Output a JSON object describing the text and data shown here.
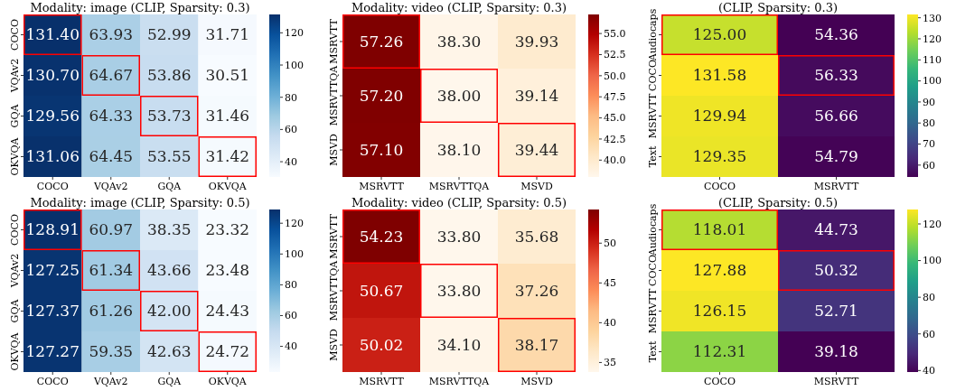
{
  "chart_data": [
    {
      "type": "heatmap",
      "title": "Modality: image (CLIP, Sparsity: 0.3)",
      "categories": [
        "COCO",
        "VQAv2",
        "GQA",
        "OKVQA"
      ],
      "y_categories": [
        "COCO",
        "VQAv2",
        "GQA",
        "OKVQA"
      ],
      "cells": [
        [
          131.4,
          63.93,
          52.99,
          31.71
        ],
        [
          130.7,
          64.67,
          53.86,
          30.51
        ],
        [
          129.56,
          64.33,
          53.73,
          31.46
        ],
        [
          131.06,
          64.45,
          53.55,
          31.42
        ]
      ],
      "cell_labels": [
        [
          "131.40",
          "63.93",
          "52.99",
          "31.71"
        ],
        [
          "130.70",
          "64.67",
          "53.86",
          "30.51"
        ],
        [
          "129.56",
          "64.33",
          "53.73",
          "31.46"
        ],
        [
          "131.06",
          "64.45",
          "53.55",
          "31.42"
        ]
      ],
      "clim": [
        30.51,
        131.4
      ],
      "cticks": [
        40,
        60,
        80,
        100,
        120
      ],
      "colors": [
        "#f7fbff",
        "#deebf7",
        "#c6dbef",
        "#9ecae1",
        "#6baed6",
        "#4292c6",
        "#2171b5",
        "#08519c",
        "#08306b"
      ]
    },
    {
      "type": "heatmap",
      "title": "Modality: video (CLIP, Sparsity: 0.3)",
      "categories": [
        "MSRVTT",
        "MSRVTTQA",
        "MSVD"
      ],
      "y_categories": [
        "MSRVTT",
        "MSRVTTQA",
        "MSVD"
      ],
      "cells": [
        [
          57.26,
          38.3,
          39.93
        ],
        [
          57.2,
          38.0,
          39.14
        ],
        [
          57.1,
          38.1,
          39.44
        ]
      ],
      "cell_labels": [
        [
          "57.26",
          "38.30",
          "39.93"
        ],
        [
          "57.20",
          "38.00",
          "39.14"
        ],
        [
          "57.10",
          "38.10",
          "39.44"
        ]
      ],
      "clim": [
        38.0,
        57.26
      ],
      "cticks": [
        {
          "value": 40,
          "label": "40.0"
        },
        {
          "value": 42.5,
          "label": "42.5"
        },
        {
          "value": 45,
          "label": "45.0"
        },
        {
          "value": 47.5,
          "label": "47.5"
        },
        {
          "value": 50,
          "label": "50.0"
        },
        {
          "value": 52.5,
          "label": "52.5"
        },
        {
          "value": 55,
          "label": "55.0"
        }
      ],
      "colors": [
        "#fff7ec",
        "#fee8c8",
        "#fdd49e",
        "#fdbb84",
        "#fc8d59",
        "#ef6548",
        "#d7301f",
        "#b30000",
        "#7f0000"
      ]
    },
    {
      "type": "heatmap",
      "title": "(CLIP, Sparsity: 0.3)",
      "categories": [
        "COCO",
        "MSRVTT"
      ],
      "y_categories": [
        "Audiocaps",
        "COCO",
        "MSRVTT",
        "Text"
      ],
      "cells": [
        [
          125.0,
          54.36
        ],
        [
          131.58,
          56.33
        ],
        [
          129.94,
          56.66
        ],
        [
          129.35,
          54.79
        ]
      ],
      "cell_labels": [
        [
          "125.00",
          "54.36"
        ],
        [
          "131.58",
          "56.33"
        ],
        [
          "129.94",
          "56.66"
        ],
        [
          "129.35",
          "54.79"
        ]
      ],
      "clim": [
        54.36,
        131.58
      ],
      "cticks": [
        60,
        70,
        80,
        90,
        100,
        110,
        120,
        130
      ],
      "colors": [
        "#440154",
        "#482878",
        "#3e4989",
        "#31688e",
        "#26828e",
        "#1f9e89",
        "#35b779",
        "#6ece58",
        "#b5de2b",
        "#fde725"
      ]
    },
    {
      "type": "heatmap",
      "title": "Modality: image (CLIP, Sparsity: 0.5)",
      "categories": [
        "COCO",
        "VQAv2",
        "GQA",
        "OKVQA"
      ],
      "y_categories": [
        "COCO",
        "VQAv2",
        "GQA",
        "OKVQA"
      ],
      "cells": [
        [
          128.91,
          60.97,
          38.35,
          23.32
        ],
        [
          127.25,
          61.34,
          43.66,
          23.48
        ],
        [
          127.37,
          61.26,
          42.0,
          24.43
        ],
        [
          127.27,
          59.35,
          42.63,
          24.72
        ]
      ],
      "cell_labels": [
        [
          "128.91",
          "60.97",
          "38.35",
          "23.32"
        ],
        [
          "127.25",
          "61.34",
          "43.66",
          "23.48"
        ],
        [
          "127.37",
          "61.26",
          "42.00",
          "24.43"
        ],
        [
          "127.27",
          "59.35",
          "42.63",
          "24.72"
        ]
      ],
      "clim": [
        23.32,
        128.91
      ],
      "cticks": [
        40,
        60,
        80,
        100,
        120
      ],
      "colors": [
        "#f7fbff",
        "#deebf7",
        "#c6dbef",
        "#9ecae1",
        "#6baed6",
        "#4292c6",
        "#2171b5",
        "#08519c",
        "#08306b"
      ]
    },
    {
      "type": "heatmap",
      "title": "Modality: video (CLIP, Sparsity: 0.5)",
      "categories": [
        "MSRVTT",
        "MSRVTTQA",
        "MSVD"
      ],
      "y_categories": [
        "MSRVTT",
        "MSRVTTQA",
        "MSVD"
      ],
      "cells": [
        [
          54.23,
          33.8,
          35.68
        ],
        [
          50.67,
          33.8,
          37.26
        ],
        [
          50.02,
          34.1,
          38.17
        ]
      ],
      "cell_labels": [
        [
          "54.23",
          "33.80",
          "35.68"
        ],
        [
          "50.67",
          "33.80",
          "37.26"
        ],
        [
          "50.02",
          "34.10",
          "38.17"
        ]
      ],
      "clim": [
        33.8,
        54.23
      ],
      "cticks": [
        35,
        40,
        45,
        50
      ],
      "colors": [
        "#fff7ec",
        "#fee8c8",
        "#fdd49e",
        "#fdbb84",
        "#fc8d59",
        "#ef6548",
        "#d7301f",
        "#b30000",
        "#7f0000"
      ]
    },
    {
      "type": "heatmap",
      "title": "(CLIP, Sparsity: 0.5)",
      "categories": [
        "COCO",
        "MSRVTT"
      ],
      "y_categories": [
        "Audiocaps",
        "COCO",
        "MSRVTT",
        "Text"
      ],
      "cells": [
        [
          118.01,
          44.73
        ],
        [
          127.88,
          50.32
        ],
        [
          126.15,
          52.71
        ],
        [
          112.31,
          39.18
        ]
      ],
      "cell_labels": [
        [
          "118.01",
          "44.73"
        ],
        [
          "127.88",
          "50.32"
        ],
        [
          "126.15",
          "52.71"
        ],
        [
          "112.31",
          "39.18"
        ]
      ],
      "clim": [
        39.18,
        127.88
      ],
      "cticks": [
        40,
        60,
        80,
        100,
        120
      ],
      "colors": [
        "#440154",
        "#482878",
        "#3e4989",
        "#31688e",
        "#26828e",
        "#1f9e89",
        "#35b779",
        "#6ece58",
        "#b5de2b",
        "#fde725"
      ]
    }
  ]
}
